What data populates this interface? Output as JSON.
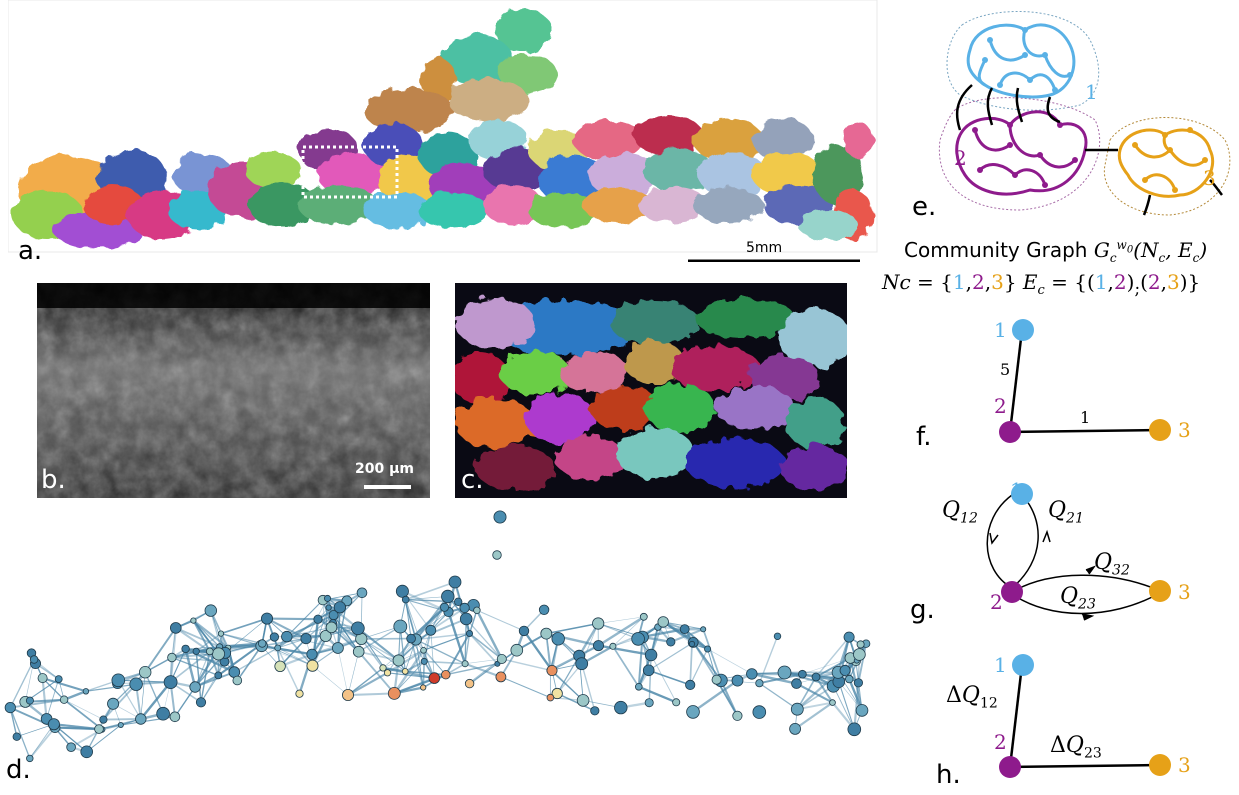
{
  "figure": {
    "panels": {
      "a": {
        "label": "a.",
        "scale_text": "5mm"
      },
      "b": {
        "label": "b.",
        "scale_text": "200 µm"
      },
      "c": {
        "label": "c."
      },
      "d": {
        "label": "d."
      },
      "e": {
        "label": "e.",
        "community_labels": [
          "1",
          "2",
          "3"
        ]
      },
      "f": {
        "label": "f.",
        "node_labels": [
          "1",
          "2",
          "3"
        ],
        "edge_weights": [
          "5",
          "1"
        ]
      },
      "g": {
        "label": "g.",
        "node_labels": [
          "1",
          "2",
          "3"
        ]
      },
      "h": {
        "label": "h.",
        "node_labels": [
          "1",
          "2",
          "3"
        ]
      }
    },
    "community_graph": {
      "title": "Community Graph",
      "nodes_prefix": "Nc = {",
      "edges_prefix": "E",
      "nodes": [
        "1",
        "2",
        "3"
      ],
      "edges": [
        [
          "1",
          "2"
        ],
        [
          "2",
          "3"
        ]
      ]
    },
    "colors": {
      "community_1": "#59b1e6",
      "community_2": "#8e1b8c",
      "community_3": "#e6a118"
    }
  }
}
